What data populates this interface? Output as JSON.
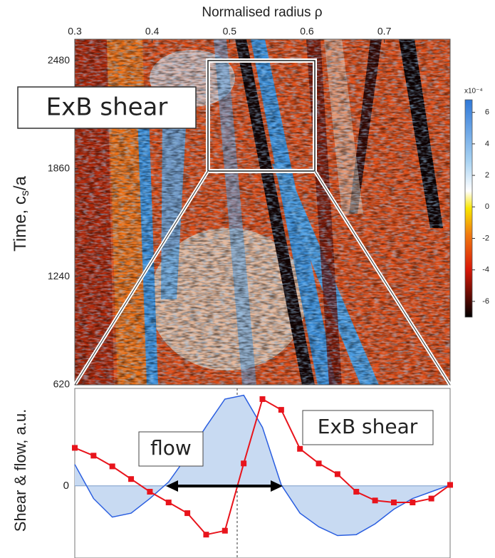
{
  "chart_data": [
    {
      "type": "heatmap",
      "title": "Normalised radius ρ",
      "ylabel": "Time, c",
      "ylabel_subscript": "s",
      "ylabel_suffix": "/a",
      "xlim": [
        0.3,
        0.785
      ],
      "xticks": [
        0.3,
        0.4,
        0.5,
        0.6,
        0.7
      ],
      "ylim": [
        620,
        2603
      ],
      "yticks": [
        620,
        1240,
        1860,
        2480
      ],
      "colorbar": {
        "label": "x10⁻⁴",
        "lim": [
          -7,
          6.8
        ],
        "ticks": [
          6,
          4,
          2,
          0,
          -2,
          -4,
          -6
        ]
      },
      "annotation": "ExB shear"
    },
    {
      "type": "line",
      "ylabel": "Shear & flow, a.u.",
      "xlim": [
        0.47,
        0.61
      ],
      "ylim": [
        -0.74,
        1
      ],
      "yticks": [
        0
      ],
      "x": [
        0.47,
        0.477,
        0.484,
        0.491,
        0.498,
        0.505,
        0.512,
        0.519,
        0.526,
        0.533,
        0.54,
        0.547,
        0.554,
        0.561,
        0.568,
        0.575,
        0.582,
        0.589,
        0.596,
        0.603,
        0.61
      ],
      "series": [
        {
          "name": "flow",
          "color": "#2a5ee0",
          "values": [
            0.22,
            -0.13,
            -0.32,
            -0.28,
            -0.13,
            0.04,
            0.31,
            0.61,
            0.89,
            0.93,
            0.6,
            0.01,
            -0.28,
            -0.42,
            -0.51,
            -0.5,
            -0.39,
            -0.24,
            -0.13,
            -0.06,
            0.01
          ]
        },
        {
          "name": "ExB shear",
          "color": "#e8141c",
          "values": [
            0.39,
            0.31,
            0.2,
            0.07,
            -0.06,
            -0.17,
            -0.28,
            -0.5,
            -0.46,
            0.23,
            0.89,
            0.78,
            0.38,
            0.23,
            0.12,
            -0.06,
            -0.15,
            -0.17,
            -0.17,
            -0.13,
            0.01
          ]
        }
      ]
    }
  ]
}
